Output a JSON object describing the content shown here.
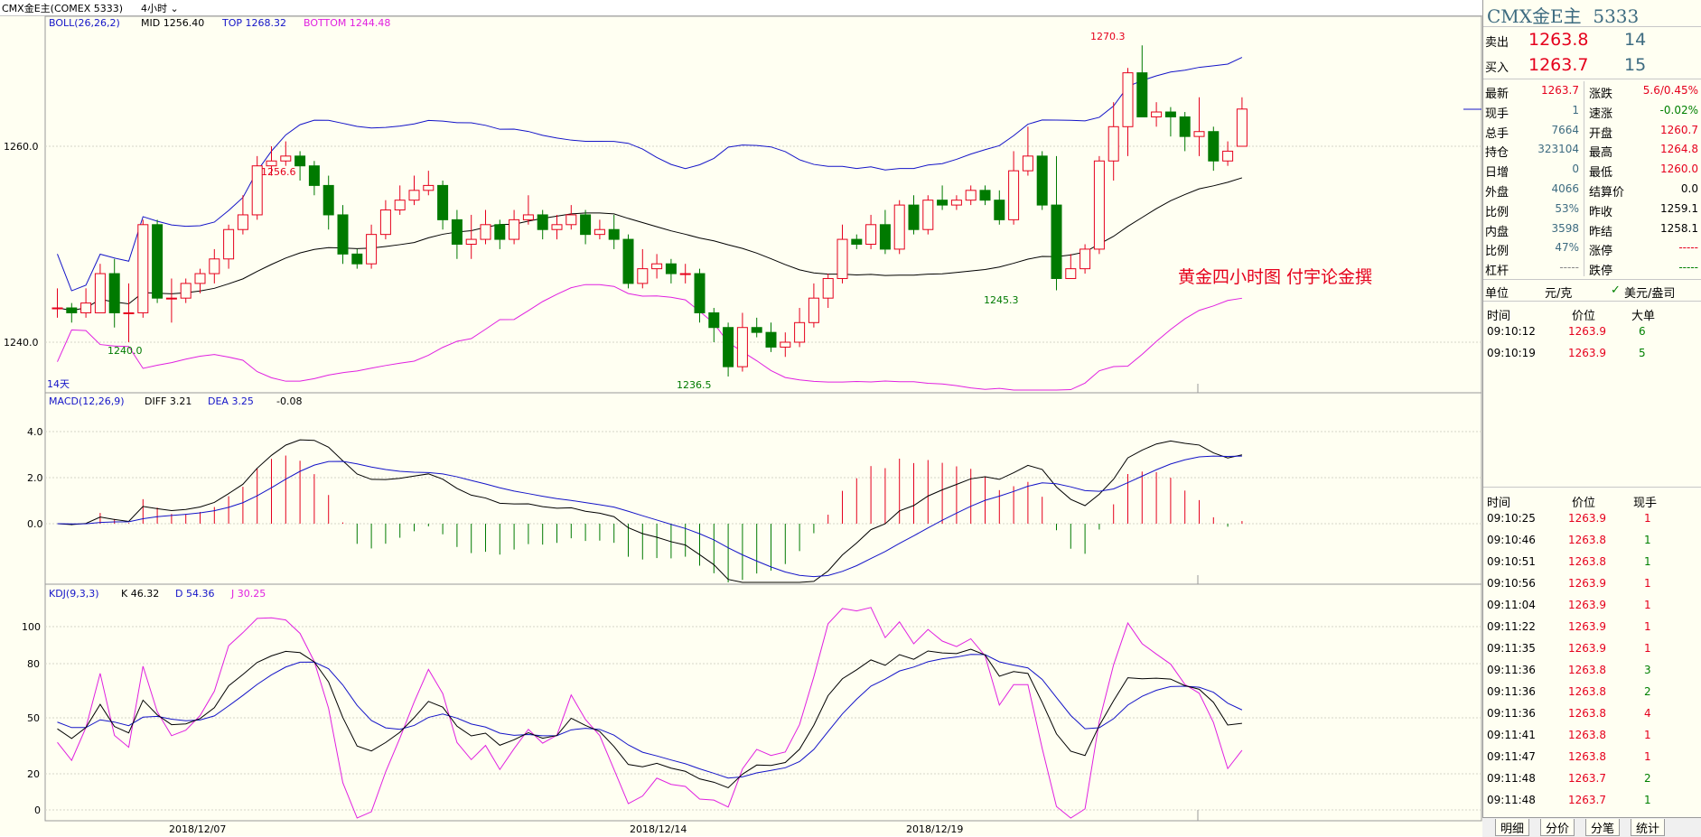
{
  "topbar": {
    "symbol": "CMX金E主(COMEX 5333)",
    "period": "4小时"
  },
  "boll": {
    "label": "BOLL(26,26,2)",
    "mid": "MID 1256.40",
    "top": "TOP 1268.32",
    "bottom": "BOTTOM 1244.48"
  },
  "macd": {
    "label": "MACD(12,26,9)",
    "diff": "DIFF 3.21",
    "dea": "DEA 3.25",
    "macd": "-0.08",
    "ticks": [
      "4.0",
      "2.0",
      "0.0"
    ]
  },
  "kdj": {
    "label": "KDJ(9,3,3)",
    "k": "K 46.32",
    "d": "D 54.36",
    "j": "J 30.25",
    "ticks": [
      "100",
      "80",
      "50",
      "20",
      "0"
    ]
  },
  "price_axis": {
    "ticks": [
      "1260.0",
      "1240.0"
    ]
  },
  "date_axis": [
    "2018/12/07",
    "2018/12/14",
    "2018/12/19"
  ],
  "annotations": {
    "high": "1270.3",
    "peak": "1256.6",
    "low1": "1240.0",
    "low2": "1236.5",
    "low3": "1245.3",
    "days": "14天",
    "caption": "黄金四小时图  付宇论金撰"
  },
  "colors": {
    "up": "#e5001c",
    "down": "#007a00",
    "boll_band": "#1414c8",
    "boll_bottom": "#e020e0",
    "boll_mid": "#000000"
  },
  "chart_data": {
    "type": "candlestick",
    "candles": [
      [
        1243.5,
        1243.5,
        1245.5,
        1242.5
      ],
      [
        1243.5,
        1243.0,
        1244.0,
        1242.0
      ],
      [
        1243.0,
        1244.0,
        1245.5,
        1242.5
      ],
      [
        1243.0,
        1247.0,
        1248.0,
        1243.0
      ],
      [
        1247.0,
        1243.0,
        1248.5,
        1241.5
      ],
      [
        1243.0,
        1243.0,
        1246.0,
        1240.0
      ],
      [
        1243.0,
        1252.0,
        1252.5,
        1242.5
      ],
      [
        1252.0,
        1244.5,
        1252.5,
        1244.0
      ],
      [
        1244.5,
        1244.5,
        1246.5,
        1242.0
      ],
      [
        1244.5,
        1246.0,
        1246.5,
        1244.0
      ],
      [
        1246.0,
        1247.0,
        1247.5,
        1245.0
      ],
      [
        1247.0,
        1248.5,
        1249.5,
        1246.0
      ],
      [
        1248.5,
        1251.5,
        1252.0,
        1247.5
      ],
      [
        1251.5,
        1253.0,
        1255.0,
        1251.0
      ],
      [
        1253.0,
        1258.0,
        1259.0,
        1252.5
      ],
      [
        1258.0,
        1258.5,
        1260.0,
        1257.0
      ],
      [
        1258.5,
        1259.0,
        1260.5,
        1258.0
      ],
      [
        1259.0,
        1258.0,
        1259.5,
        1256.5
      ],
      [
        1258.0,
        1256.0,
        1258.5,
        1255.0
      ],
      [
        1256.0,
        1253.0,
        1257.0,
        1251.5
      ],
      [
        1253.0,
        1249.0,
        1254.0,
        1248.0
      ],
      [
        1249.0,
        1248.0,
        1249.5,
        1247.5
      ],
      [
        1248.0,
        1251.0,
        1252.0,
        1247.5
      ],
      [
        1251.0,
        1253.5,
        1254.5,
        1250.5
      ],
      [
        1253.5,
        1254.5,
        1256.0,
        1253.0
      ],
      [
        1254.5,
        1255.5,
        1257.0,
        1254.0
      ],
      [
        1255.5,
        1256.0,
        1257.5,
        1255.0
      ],
      [
        1256.0,
        1252.5,
        1256.5,
        1251.5
      ],
      [
        1252.5,
        1250.0,
        1253.5,
        1248.5
      ],
      [
        1250.0,
        1250.5,
        1253.0,
        1248.5
      ],
      [
        1250.5,
        1252.0,
        1253.5,
        1250.0
      ],
      [
        1252.0,
        1250.5,
        1252.5,
        1249.5
      ],
      [
        1250.5,
        1252.5,
        1253.5,
        1250.0
      ],
      [
        1252.5,
        1253.0,
        1255.0,
        1252.0
      ],
      [
        1253.0,
        1251.5,
        1253.5,
        1250.5
      ],
      [
        1251.5,
        1252.0,
        1253.0,
        1250.5
      ],
      [
        1252.0,
        1253.0,
        1254.0,
        1251.5
      ],
      [
        1253.0,
        1251.0,
        1253.5,
        1250.0
      ],
      [
        1251.0,
        1251.5,
        1252.5,
        1250.5
      ],
      [
        1251.5,
        1250.5,
        1253.0,
        1249.5
      ],
      [
        1250.5,
        1246.0,
        1251.0,
        1245.5
      ],
      [
        1246.0,
        1247.5,
        1249.5,
        1245.5
      ],
      [
        1247.5,
        1248.0,
        1249.0,
        1246.5
      ],
      [
        1248.0,
        1247.0,
        1248.5,
        1246.0
      ],
      [
        1247.0,
        1247.0,
        1248.0,
        1246.0
      ],
      [
        1247.0,
        1243.0,
        1247.5,
        1242.0
      ],
      [
        1243.0,
        1241.5,
        1243.5,
        1240.0
      ],
      [
        1241.5,
        1237.5,
        1242.0,
        1236.5
      ],
      [
        1237.5,
        1241.5,
        1243.0,
        1237.0
      ],
      [
        1241.5,
        1241.0,
        1242.5,
        1240.5
      ],
      [
        1241.0,
        1239.5,
        1242.0,
        1239.0
      ],
      [
        1239.5,
        1240.0,
        1241.0,
        1238.5
      ],
      [
        1240.0,
        1242.0,
        1243.5,
        1239.5
      ],
      [
        1242.0,
        1244.5,
        1246.0,
        1241.5
      ],
      [
        1244.5,
        1246.5,
        1247.0,
        1243.5
      ],
      [
        1246.5,
        1250.5,
        1252.0,
        1246.0
      ],
      [
        1250.5,
        1250.0,
        1251.0,
        1249.5
      ],
      [
        1250.0,
        1252.0,
        1253.0,
        1249.5
      ],
      [
        1252.0,
        1249.5,
        1253.5,
        1249.0
      ],
      [
        1249.5,
        1254.0,
        1254.5,
        1249.0
      ],
      [
        1254.0,
        1251.5,
        1255.0,
        1251.0
      ],
      [
        1251.5,
        1254.5,
        1255.0,
        1251.0
      ],
      [
        1254.5,
        1254.0,
        1256.0,
        1253.5
      ],
      [
        1254.0,
        1254.5,
        1255.0,
        1253.5
      ],
      [
        1254.5,
        1255.5,
        1256.0,
        1254.0
      ],
      [
        1255.5,
        1254.5,
        1256.0,
        1254.0
      ],
      [
        1254.5,
        1252.5,
        1255.5,
        1252.0
      ],
      [
        1252.5,
        1257.5,
        1259.5,
        1252.0
      ],
      [
        1257.5,
        1259.0,
        1262.0,
        1257.0
      ],
      [
        1259.0,
        1254.0,
        1259.5,
        1253.5
      ],
      [
        1254.0,
        1246.5,
        1259.0,
        1245.3
      ],
      [
        1246.5,
        1247.5,
        1249.0,
        1246.5
      ],
      [
        1247.5,
        1249.5,
        1250.0,
        1247.0
      ],
      [
        1249.5,
        1258.5,
        1259.0,
        1249.0
      ],
      [
        1258.5,
        1262.0,
        1264.5,
        1256.5
      ],
      [
        1262.0,
        1267.5,
        1268.0,
        1259.0
      ],
      [
        1267.5,
        1263.0,
        1270.3,
        1263.0
      ],
      [
        1263.0,
        1263.5,
        1264.5,
        1262.0
      ],
      [
        1263.5,
        1263.0,
        1264.0,
        1261.0
      ],
      [
        1263.0,
        1261.0,
        1263.5,
        1259.5
      ],
      [
        1261.0,
        1261.5,
        1265.0,
        1259.0
      ],
      [
        1261.5,
        1258.5,
        1262.0,
        1257.5
      ],
      [
        1258.5,
        1259.5,
        1260.5,
        1258.0
      ],
      [
        1260.0,
        1263.8,
        1265.0,
        1260.0
      ]
    ],
    "ylim": [
      1230,
      1272
    ]
  },
  "panel": {
    "title": "CMX金E主",
    "code": "5333",
    "sell": {
      "label": "卖出",
      "price": "1263.8",
      "vol": "14"
    },
    "buy": {
      "label": "买入",
      "price": "1263.7",
      "vol": "15"
    },
    "stats": [
      {
        "l1": "最新",
        "v1": "1263.7",
        "c1": "red",
        "l2": "涨跌",
        "v2": "5.6/0.45%",
        "c2": "red"
      },
      {
        "l1": "现手",
        "v1": "1",
        "c1": "teal",
        "l2": "速涨",
        "v2": "-0.02%",
        "c2": "green"
      },
      {
        "l1": "总手",
        "v1": "7664",
        "c1": "teal",
        "l2": "开盘",
        "v2": "1260.7",
        "c2": "red"
      },
      {
        "l1": "持仓",
        "v1": "323104",
        "c1": "teal",
        "l2": "最高",
        "v2": "1264.8",
        "c2": "red"
      },
      {
        "l1": "日增",
        "v1": "0",
        "c1": "teal",
        "l2": "最低",
        "v2": "1260.0",
        "c2": "red"
      },
      {
        "l1": "外盘",
        "v1": "4066",
        "c1": "teal",
        "l2": "结算价",
        "v2": "0.0",
        "c2": "black"
      },
      {
        "l1": "比例",
        "v1": "53%",
        "c1": "teal",
        "l2": "昨收",
        "v2": "1259.1",
        "c2": "black"
      },
      {
        "l1": "内盘",
        "v1": "3598",
        "c1": "teal",
        "l2": "昨结",
        "v2": "1258.1",
        "c2": "black"
      },
      {
        "l1": "比例",
        "v1": "47%",
        "c1": "teal",
        "l2": "涨停",
        "v2": "-----",
        "c2": "red"
      },
      {
        "l1": "杠杆",
        "v1": "-----",
        "c1": "grey",
        "l2": "跌停",
        "v2": "-----",
        "c2": "green"
      }
    ],
    "unit": {
      "label": "单位",
      "value": "元/克",
      "check": "美元/盎司"
    },
    "big_header": [
      "时间",
      "价位",
      "大单"
    ],
    "big_rows": [
      {
        "t": "09:10:12",
        "p": "1263.9",
        "v": "6"
      },
      {
        "t": "09:10:19",
        "p": "1263.9",
        "v": "5"
      }
    ],
    "tick_header": [
      "时间",
      "价位",
      "现手"
    ],
    "tick_rows": [
      {
        "t": "09:10:25",
        "p": "1263.9",
        "v": "1",
        "vc": "red"
      },
      {
        "t": "09:10:46",
        "p": "1263.8",
        "v": "1",
        "vc": "green"
      },
      {
        "t": "09:10:51",
        "p": "1263.8",
        "v": "1",
        "vc": "green"
      },
      {
        "t": "09:10:56",
        "p": "1263.9",
        "v": "1",
        "vc": "red"
      },
      {
        "t": "09:11:04",
        "p": "1263.9",
        "v": "1",
        "vc": "red"
      },
      {
        "t": "09:11:22",
        "p": "1263.9",
        "v": "1",
        "vc": "red"
      },
      {
        "t": "09:11:35",
        "p": "1263.9",
        "v": "1",
        "vc": "red"
      },
      {
        "t": "09:11:36",
        "p": "1263.8",
        "v": "3",
        "vc": "green"
      },
      {
        "t": "09:11:36",
        "p": "1263.8",
        "v": "2",
        "vc": "green"
      },
      {
        "t": "09:11:36",
        "p": "1263.8",
        "v": "4",
        "vc": "red"
      },
      {
        "t": "09:11:41",
        "p": "1263.8",
        "v": "1",
        "vc": "red"
      },
      {
        "t": "09:11:47",
        "p": "1263.8",
        "v": "1",
        "vc": "red"
      },
      {
        "t": "09:11:48",
        "p": "1263.7",
        "v": "2",
        "vc": "green"
      },
      {
        "t": "09:11:48",
        "p": "1263.7",
        "v": "1",
        "vc": "green"
      }
    ],
    "tabs": [
      "明细",
      "分价",
      "分笔",
      "统计"
    ]
  }
}
